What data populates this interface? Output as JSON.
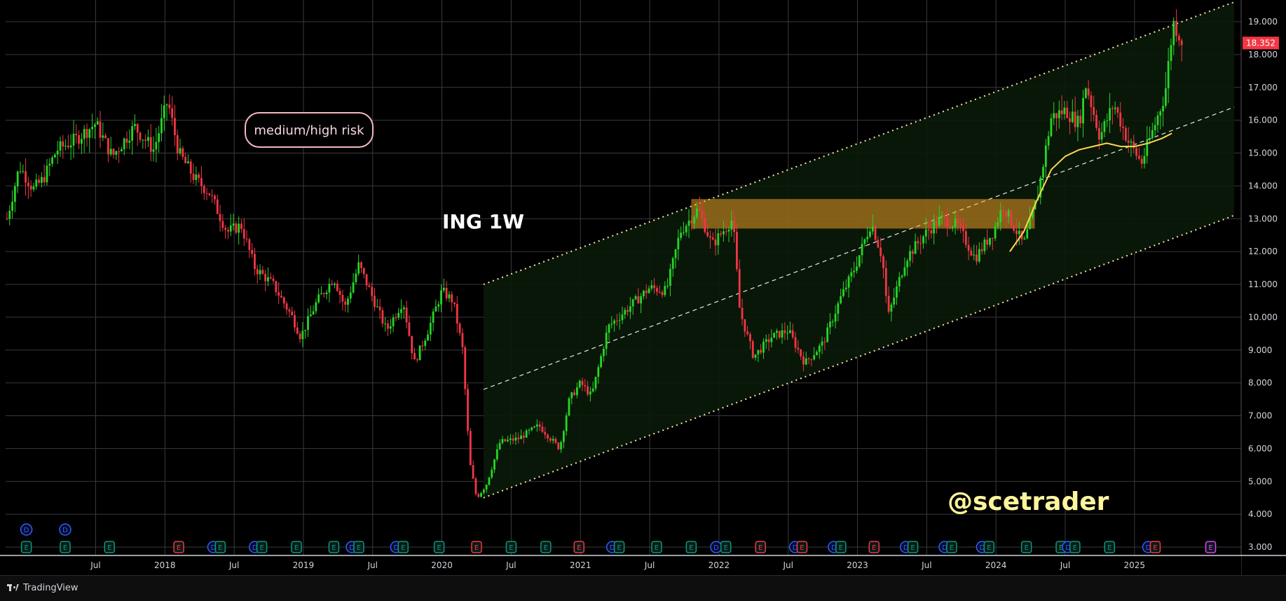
{
  "chart_data": {
    "type": "candlestick",
    "symbol_label": "ING 1W",
    "risk_label": "medium/high risk",
    "watermark": "@scetrader",
    "last_price_label": "18.352",
    "ylim": [
      2.6,
      19.6
    ],
    "y_ticks": [
      "3.000",
      "4.000",
      "5.000",
      "6.000",
      "7.000",
      "8.000",
      "9.000",
      "10.000",
      "11.000",
      "12.000",
      "13.000",
      "14.000",
      "15.000",
      "16.000",
      "17.000",
      "18.000",
      "19.000"
    ],
    "x_ticks": [
      {
        "label": "Jul",
        "t": 2017.5
      },
      {
        "label": "2018",
        "t": 2018.0
      },
      {
        "label": "Jul",
        "t": 2018.5
      },
      {
        "label": "2019",
        "t": 2019.0
      },
      {
        "label": "Jul",
        "t": 2019.5
      },
      {
        "label": "2020",
        "t": 2020.0
      },
      {
        "label": "Jul",
        "t": 2020.5
      },
      {
        "label": "2021",
        "t": 2021.0
      },
      {
        "label": "Jul",
        "t": 2021.5
      },
      {
        "label": "2022",
        "t": 2022.0
      },
      {
        "label": "Jul",
        "t": 2022.5
      },
      {
        "label": "2023",
        "t": 2023.0
      },
      {
        "label": "Jul",
        "t": 2023.5
      },
      {
        "label": "2024",
        "t": 2024.0
      },
      {
        "label": "Jul",
        "t": 2024.5
      },
      {
        "label": "2025",
        "t": 2025.0
      }
    ],
    "price_path": [
      [
        2016.86,
        13.0
      ],
      [
        2016.95,
        14.6
      ],
      [
        2017.05,
        13.9
      ],
      [
        2017.12,
        14.2
      ],
      [
        2017.22,
        15.1
      ],
      [
        2017.35,
        15.4
      ],
      [
        2017.5,
        15.9
      ],
      [
        2017.62,
        14.9
      ],
      [
        2017.78,
        15.8
      ],
      [
        2017.92,
        15.1
      ],
      [
        2018.02,
        16.6
      ],
      [
        2018.1,
        15.0
      ],
      [
        2018.22,
        14.2
      ],
      [
        2018.32,
        13.8
      ],
      [
        2018.45,
        12.6
      ],
      [
        2018.55,
        12.8
      ],
      [
        2018.65,
        11.5
      ],
      [
        2018.78,
        11.0
      ],
      [
        2018.92,
        10.0
      ],
      [
        2018.98,
        9.4
      ],
      [
        2019.1,
        10.5
      ],
      [
        2019.22,
        11.2
      ],
      [
        2019.3,
        10.3
      ],
      [
        2019.4,
        11.6
      ],
      [
        2019.52,
        10.4
      ],
      [
        2019.6,
        9.6
      ],
      [
        2019.72,
        10.5
      ],
      [
        2019.8,
        8.6
      ],
      [
        2019.9,
        9.6
      ],
      [
        2020.0,
        10.8
      ],
      [
        2020.08,
        10.5
      ],
      [
        2020.15,
        9.0
      ],
      [
        2020.2,
        5.6
      ],
      [
        2020.25,
        4.5
      ],
      [
        2020.32,
        4.9
      ],
      [
        2020.42,
        6.2
      ],
      [
        2020.55,
        6.3
      ],
      [
        2020.7,
        6.7
      ],
      [
        2020.85,
        6.0
      ],
      [
        2020.92,
        7.5
      ],
      [
        2021.0,
        8.0
      ],
      [
        2021.08,
        7.6
      ],
      [
        2021.2,
        9.7
      ],
      [
        2021.35,
        10.3
      ],
      [
        2021.5,
        10.9
      ],
      [
        2021.62,
        10.8
      ],
      [
        2021.72,
        12.6
      ],
      [
        2021.85,
        13.3
      ],
      [
        2021.95,
        12.2
      ],
      [
        2022.1,
        13.0
      ],
      [
        2022.15,
        10.2
      ],
      [
        2022.25,
        8.8
      ],
      [
        2022.38,
        9.4
      ],
      [
        2022.5,
        9.6
      ],
      [
        2022.62,
        8.6
      ],
      [
        2022.75,
        9.2
      ],
      [
        2022.88,
        10.6
      ],
      [
        2022.98,
        11.5
      ],
      [
        2023.1,
        12.9
      ],
      [
        2023.18,
        11.8
      ],
      [
        2023.22,
        10.0
      ],
      [
        2023.35,
        11.8
      ],
      [
        2023.5,
        12.6
      ],
      [
        2023.6,
        13.0
      ],
      [
        2023.72,
        12.8
      ],
      [
        2023.85,
        11.8
      ],
      [
        2023.98,
        12.6
      ],
      [
        2024.05,
        13.4
      ],
      [
        2024.2,
        12.2
      ],
      [
        2024.3,
        13.7
      ],
      [
        2024.4,
        16.1
      ],
      [
        2024.5,
        16.3
      ],
      [
        2024.6,
        15.9
      ],
      [
        2024.65,
        17.1
      ],
      [
        2024.75,
        15.5
      ],
      [
        2024.85,
        16.5
      ],
      [
        2024.95,
        15.4
      ],
      [
        2025.05,
        14.7
      ],
      [
        2025.15,
        15.9
      ],
      [
        2025.22,
        16.8
      ],
      [
        2025.28,
        19.0
      ],
      [
        2025.35,
        18.35
      ]
    ],
    "channel": {
      "start": {
        "t": 2020.3,
        "upper": 11.0,
        "middle": 7.8,
        "lower": 4.5
      },
      "end": {
        "t": 2025.72,
        "upper": 19.6,
        "middle": 16.4,
        "lower": 13.1
      }
    },
    "resistance_zone": {
      "t_start": 2021.8,
      "t_end": 2024.28,
      "price_low": 12.7,
      "price_high": 13.6
    },
    "moving_average": [
      [
        2024.1,
        12.0
      ],
      [
        2024.2,
        12.6
      ],
      [
        2024.3,
        13.6
      ],
      [
        2024.4,
        14.5
      ],
      [
        2024.5,
        14.9
      ],
      [
        2024.6,
        15.1
      ],
      [
        2024.7,
        15.2
      ],
      [
        2024.8,
        15.3
      ],
      [
        2024.9,
        15.2
      ],
      [
        2025.0,
        15.2
      ],
      [
        2025.1,
        15.3
      ],
      [
        2025.2,
        15.45
      ],
      [
        2025.27,
        15.6
      ]
    ],
    "markers": [
      {
        "letter": "D",
        "t": 2017.0,
        "color": "#2962ff",
        "row": "upper"
      },
      {
        "letter": "D",
        "t": 2017.28,
        "color": "#2962ff",
        "row": "upper"
      },
      {
        "letter": "E",
        "t": 2017.0,
        "color": "#089981",
        "row": "lower"
      },
      {
        "letter": "E",
        "t": 2017.28,
        "color": "#089981",
        "row": "lower"
      },
      {
        "letter": "E",
        "t": 2017.6,
        "color": "#089981",
        "row": "lower"
      },
      {
        "letter": "E",
        "t": 2018.1,
        "color": "#f23645",
        "row": "lower"
      },
      {
        "letter": "D",
        "t": 2018.35,
        "color": "#2962ff",
        "row": "lower"
      },
      {
        "letter": "E",
        "t": 2018.4,
        "color": "#089981",
        "row": "lower"
      },
      {
        "letter": "D",
        "t": 2018.65,
        "color": "#2962ff",
        "row": "lower"
      },
      {
        "letter": "E",
        "t": 2018.7,
        "color": "#089981",
        "row": "lower"
      },
      {
        "letter": "E",
        "t": 2018.95,
        "color": "#089981",
        "row": "lower"
      },
      {
        "letter": "E",
        "t": 2019.22,
        "color": "#089981",
        "row": "lower"
      },
      {
        "letter": "D",
        "t": 2019.35,
        "color": "#2962ff",
        "row": "lower"
      },
      {
        "letter": "E",
        "t": 2019.4,
        "color": "#089981",
        "row": "lower"
      },
      {
        "letter": "D",
        "t": 2019.67,
        "color": "#2962ff",
        "row": "lower"
      },
      {
        "letter": "E",
        "t": 2019.72,
        "color": "#089981",
        "row": "lower"
      },
      {
        "letter": "E",
        "t": 2019.98,
        "color": "#089981",
        "row": "lower"
      },
      {
        "letter": "E",
        "t": 2020.25,
        "color": "#f23645",
        "row": "lower"
      },
      {
        "letter": "E",
        "t": 2020.5,
        "color": "#089981",
        "row": "lower"
      },
      {
        "letter": "E",
        "t": 2020.75,
        "color": "#089981",
        "row": "lower"
      },
      {
        "letter": "E",
        "t": 2020.99,
        "color": "#f23645",
        "row": "lower"
      },
      {
        "letter": "D",
        "t": 2021.23,
        "color": "#2962ff",
        "row": "lower"
      },
      {
        "letter": "E",
        "t": 2021.28,
        "color": "#089981",
        "row": "lower"
      },
      {
        "letter": "E",
        "t": 2021.55,
        "color": "#089981",
        "row": "lower"
      },
      {
        "letter": "E",
        "t": 2021.8,
        "color": "#089981",
        "row": "lower"
      },
      {
        "letter": "D",
        "t": 2021.98,
        "color": "#2962ff",
        "row": "lower"
      },
      {
        "letter": "E",
        "t": 2022.05,
        "color": "#089981",
        "row": "lower"
      },
      {
        "letter": "E",
        "t": 2022.3,
        "color": "#f23645",
        "row": "lower"
      },
      {
        "letter": "D",
        "t": 2022.55,
        "color": "#2962ff",
        "row": "lower"
      },
      {
        "letter": "E",
        "t": 2022.6,
        "color": "#f23645",
        "row": "lower"
      },
      {
        "letter": "D",
        "t": 2022.83,
        "color": "#2962ff",
        "row": "lower"
      },
      {
        "letter": "E",
        "t": 2022.88,
        "color": "#089981",
        "row": "lower"
      },
      {
        "letter": "E",
        "t": 2023.12,
        "color": "#f23645",
        "row": "lower"
      },
      {
        "letter": "D",
        "t": 2023.35,
        "color": "#2962ff",
        "row": "lower"
      },
      {
        "letter": "E",
        "t": 2023.4,
        "color": "#089981",
        "row": "lower"
      },
      {
        "letter": "D",
        "t": 2023.63,
        "color": "#2962ff",
        "row": "lower"
      },
      {
        "letter": "E",
        "t": 2023.68,
        "color": "#089981",
        "row": "lower"
      },
      {
        "letter": "D",
        "t": 2023.9,
        "color": "#2962ff",
        "row": "lower"
      },
      {
        "letter": "E",
        "t": 2023.95,
        "color": "#089981",
        "row": "lower"
      },
      {
        "letter": "E",
        "t": 2024.22,
        "color": "#089981",
        "row": "lower"
      },
      {
        "letter": "E",
        "t": 2024.47,
        "color": "#089981",
        "row": "lower"
      },
      {
        "letter": "D",
        "t": 2024.52,
        "color": "#2962ff",
        "row": "lower"
      },
      {
        "letter": "E",
        "t": 2024.57,
        "color": "#089981",
        "row": "lower"
      },
      {
        "letter": "E",
        "t": 2024.82,
        "color": "#089981",
        "row": "lower"
      },
      {
        "letter": "D",
        "t": 2025.1,
        "color": "#2962ff",
        "row": "lower"
      },
      {
        "letter": "E",
        "t": 2025.15,
        "color": "#f23645",
        "row": "lower"
      },
      {
        "letter": "E",
        "t": 2025.55,
        "color": "#e040fb",
        "row": "lower"
      }
    ],
    "colors": {
      "background": "#000000",
      "grid": "#3a3a3a",
      "up": "#26d626",
      "down": "#f23645",
      "channel_fill": "#0a1a0a",
      "zone": "#ffa726",
      "moving_average": "#ffd54f",
      "price_badge": "#f23645",
      "label_text": "#ffffff",
      "risk_text": "#f8d7dd",
      "watermark": "#fff59d"
    }
  },
  "footer": {
    "brand": "TradingView"
  }
}
